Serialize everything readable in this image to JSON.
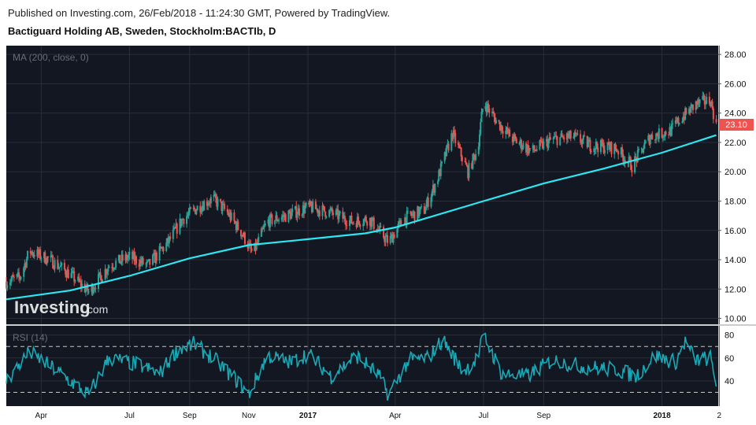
{
  "header": {
    "published": "Published on Investing.com, 26/Feb/2018 - 11:24:30 GMT, Powered by TradingView.",
    "instrument": "Bactiguard Holding AB, Sweden, Stockholm:BACTIb, D"
  },
  "watermark": {
    "brand": "Investing",
    "suffix": ".com"
  },
  "chart_data": [
    {
      "type": "candlestick",
      "indicator_label": "MA (200, close, 0)",
      "y_ticks": [
        "28.00",
        "26.00",
        "24.00",
        "22.00",
        "20.00",
        "18.00",
        "16.00",
        "14.00",
        "12.00",
        "10.00"
      ],
      "ylim": [
        9.6,
        28.6
      ],
      "last_price": "23.10",
      "ma_color": "#2ee6f0",
      "up_color": "#26a69a",
      "down_color": "#ef5350",
      "approx_close_path": [
        {
          "date": "2016-02-25",
          "close": 12.5
        },
        {
          "date": "2016-03-10",
          "close": 12.8
        },
        {
          "date": "2016-03-20",
          "close": 14.6
        },
        {
          "date": "2016-04-10",
          "close": 14.0
        },
        {
          "date": "2016-05-01",
          "close": 13.0
        },
        {
          "date": "2016-05-20",
          "close": 11.8
        },
        {
          "date": "2016-06-10",
          "close": 13.6
        },
        {
          "date": "2016-07-01",
          "close": 14.2
        },
        {
          "date": "2016-07-20",
          "close": 13.6
        },
        {
          "date": "2016-08-10",
          "close": 15.2
        },
        {
          "date": "2016-08-25",
          "close": 16.8
        },
        {
          "date": "2016-09-10",
          "close": 17.6
        },
        {
          "date": "2016-09-25",
          "close": 18.2
        },
        {
          "date": "2016-10-10",
          "close": 17.2
        },
        {
          "date": "2016-10-25",
          "close": 15.8
        },
        {
          "date": "2016-11-05",
          "close": 14.4
        },
        {
          "date": "2016-11-20",
          "close": 16.6
        },
        {
          "date": "2016-12-10",
          "close": 17.0
        },
        {
          "date": "2017-01-01",
          "close": 17.6
        },
        {
          "date": "2017-01-25",
          "close": 17.2
        },
        {
          "date": "2017-02-15",
          "close": 16.6
        },
        {
          "date": "2017-03-05",
          "close": 16.8
        },
        {
          "date": "2017-03-25",
          "close": 15.2
        },
        {
          "date": "2017-04-10",
          "close": 16.8
        },
        {
          "date": "2017-05-01",
          "close": 17.4
        },
        {
          "date": "2017-05-15",
          "close": 19.6
        },
        {
          "date": "2017-05-30",
          "close": 22.6
        },
        {
          "date": "2017-06-15",
          "close": 20.0
        },
        {
          "date": "2017-06-25",
          "close": 21.6
        },
        {
          "date": "2017-07-01",
          "close": 24.8
        },
        {
          "date": "2017-07-15",
          "close": 23.4
        },
        {
          "date": "2017-08-01",
          "close": 22.2
        },
        {
          "date": "2017-08-20",
          "close": 21.4
        },
        {
          "date": "2017-09-10",
          "close": 22.2
        },
        {
          "date": "2017-10-01",
          "close": 22.4
        },
        {
          "date": "2017-10-20",
          "close": 21.8
        },
        {
          "date": "2017-11-15",
          "close": 21.6
        },
        {
          "date": "2017-12-01",
          "close": 20.4
        },
        {
          "date": "2017-12-20",
          "close": 22.4
        },
        {
          "date": "2018-01-10",
          "close": 22.8
        },
        {
          "date": "2018-01-20",
          "close": 23.6
        },
        {
          "date": "2018-02-05",
          "close": 24.6
        },
        {
          "date": "2018-02-20",
          "close": 24.9
        },
        {
          "date": "2018-02-26",
          "close": 23.1
        }
      ],
      "approx_ma": [
        {
          "date": "2016-02-25",
          "value": 11.3
        },
        {
          "date": "2016-05-01",
          "value": 11.9
        },
        {
          "date": "2016-07-01",
          "value": 12.9
        },
        {
          "date": "2016-09-01",
          "value": 14.1
        },
        {
          "date": "2016-11-01",
          "value": 15.0
        },
        {
          "date": "2017-01-01",
          "value": 15.4
        },
        {
          "date": "2017-03-01",
          "value": 15.8
        },
        {
          "date": "2017-04-01",
          "value": 16.2
        },
        {
          "date": "2017-05-01",
          "value": 16.8
        },
        {
          "date": "2017-07-01",
          "value": 18.0
        },
        {
          "date": "2017-09-01",
          "value": 19.2
        },
        {
          "date": "2017-11-01",
          "value": 20.2
        },
        {
          "date": "2018-01-01",
          "value": 21.3
        },
        {
          "date": "2018-02-26",
          "value": 22.5
        }
      ]
    },
    {
      "type": "line",
      "indicator_label": "RSI (14)",
      "y_ticks": [
        "80",
        "60",
        "40"
      ],
      "ylim": [
        18,
        88
      ],
      "levels": [
        70,
        30
      ],
      "line_color": "#19a8b5",
      "approx_series": [
        {
          "date": "2016-02-25",
          "value": 40
        },
        {
          "date": "2016-03-20",
          "value": 65
        },
        {
          "date": "2016-04-15",
          "value": 50
        },
        {
          "date": "2016-05-20",
          "value": 28
        },
        {
          "date": "2016-06-10",
          "value": 60
        },
        {
          "date": "2016-07-10",
          "value": 54
        },
        {
          "date": "2016-08-01",
          "value": 46
        },
        {
          "date": "2016-08-20",
          "value": 68
        },
        {
          "date": "2016-09-05",
          "value": 72
        },
        {
          "date": "2016-09-25",
          "value": 60
        },
        {
          "date": "2016-10-20",
          "value": 40
        },
        {
          "date": "2016-11-01",
          "value": 28
        },
        {
          "date": "2016-11-20",
          "value": 62
        },
        {
          "date": "2016-12-15",
          "value": 56
        },
        {
          "date": "2017-01-01",
          "value": 64
        },
        {
          "date": "2017-01-25",
          "value": 44
        },
        {
          "date": "2017-02-20",
          "value": 62
        },
        {
          "date": "2017-03-15",
          "value": 45
        },
        {
          "date": "2017-03-25",
          "value": 28
        },
        {
          "date": "2017-04-15",
          "value": 58
        },
        {
          "date": "2017-05-05",
          "value": 60
        },
        {
          "date": "2017-05-20",
          "value": 76
        },
        {
          "date": "2017-06-10",
          "value": 48
        },
        {
          "date": "2017-06-25",
          "value": 60
        },
        {
          "date": "2017-07-01",
          "value": 80
        },
        {
          "date": "2017-07-20",
          "value": 46
        },
        {
          "date": "2017-08-15",
          "value": 44
        },
        {
          "date": "2017-09-10",
          "value": 58
        },
        {
          "date": "2017-10-15",
          "value": 52
        },
        {
          "date": "2017-11-15",
          "value": 50
        },
        {
          "date": "2017-12-05",
          "value": 44
        },
        {
          "date": "2017-12-25",
          "value": 62
        },
        {
          "date": "2018-01-15",
          "value": 56
        },
        {
          "date": "2018-01-25",
          "value": 74
        },
        {
          "date": "2018-02-05",
          "value": 58
        },
        {
          "date": "2018-02-20",
          "value": 60
        },
        {
          "date": "2018-02-26",
          "value": 38
        }
      ]
    }
  ],
  "x_axis": {
    "ticks": [
      {
        "label": "Apr",
        "date": "2016-04-01",
        "bold": false
      },
      {
        "label": "Jul",
        "date": "2016-07-01",
        "bold": false
      },
      {
        "label": "Sep",
        "date": "2016-09-01",
        "bold": false
      },
      {
        "label": "Nov",
        "date": "2016-11-01",
        "bold": false
      },
      {
        "label": "2017",
        "date": "2017-01-01",
        "bold": true
      },
      {
        "label": "Apr",
        "date": "2017-04-01",
        "bold": false
      },
      {
        "label": "Jul",
        "date": "2017-07-01",
        "bold": false
      },
      {
        "label": "Sep",
        "date": "2017-09-01",
        "bold": false
      },
      {
        "label": "2018",
        "date": "2018-01-01",
        "bold": true
      },
      {
        "label": "2",
        "date": "2018-03-01",
        "bold": false
      }
    ],
    "start": "2016-02-25",
    "end": "2018-02-28"
  }
}
